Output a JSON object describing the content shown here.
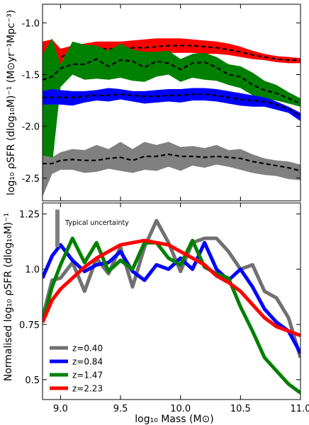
{
  "chart_data": [
    {
      "type": "area",
      "ylabel": "log₁₀ ρSFR (dlog₁₀M)⁻¹ (M⊙yr⁻¹Mpc⁻³)",
      "xlim": [
        8.85,
        11.0
      ],
      "ylim": [
        -2.72,
        -0.82
      ],
      "y_ticks": [
        "-1.0",
        "-1.5",
        "-2.0",
        "-2.5"
      ],
      "x_ticks": [],
      "x": [
        8.85,
        8.93,
        9.0,
        9.1,
        9.2,
        9.3,
        9.4,
        9.5,
        9.6,
        9.7,
        9.8,
        9.9,
        10.0,
        10.1,
        10.2,
        10.3,
        10.4,
        10.5,
        10.6,
        10.7,
        10.8,
        10.9,
        11.0
      ],
      "series": [
        {
          "color": "#ff0000",
          "median": [
            -1.53,
            -1.39,
            -1.33,
            -1.28,
            -1.27,
            -1.25,
            -1.25,
            -1.25,
            -1.24,
            -1.24,
            -1.23,
            -1.22,
            -1.22,
            -1.22,
            -1.23,
            -1.24,
            -1.26,
            -1.28,
            -1.31,
            -1.33,
            -1.35,
            -1.36,
            -1.36
          ],
          "upper": [
            -1.18,
            -1.16,
            -1.25,
            -1.22,
            -1.2,
            -1.18,
            -1.18,
            -1.18,
            -1.17,
            -1.16,
            -1.15,
            -1.15,
            -1.15,
            -1.16,
            -1.17,
            -1.18,
            -1.2,
            -1.23,
            -1.27,
            -1.3,
            -1.32,
            -1.33,
            -1.34
          ],
          "lower": [
            -1.45,
            -1.5,
            -1.4,
            -1.34,
            -1.33,
            -1.32,
            -1.31,
            -1.31,
            -1.3,
            -1.3,
            -1.29,
            -1.29,
            -1.29,
            -1.29,
            -1.3,
            -1.3,
            -1.31,
            -1.33,
            -1.35,
            -1.36,
            -1.38,
            -1.39,
            -1.39
          ]
        },
        {
          "color": "#008000",
          "median": [
            -1.55,
            -1.52,
            -1.44,
            -1.4,
            -1.4,
            -1.35,
            -1.42,
            -1.36,
            -1.37,
            -1.43,
            -1.37,
            -1.39,
            -1.45,
            -1.39,
            -1.38,
            -1.43,
            -1.5,
            -1.52,
            -1.6,
            -1.65,
            -1.68,
            -1.73,
            -1.78
          ],
          "upper": [
            -1.31,
            -1.15,
            -1.4,
            -1.18,
            -1.21,
            -1.22,
            -1.27,
            -1.2,
            -1.26,
            -1.28,
            -1.28,
            -1.27,
            -1.35,
            -1.3,
            -1.29,
            -1.33,
            -1.4,
            -1.42,
            -1.48,
            -1.56,
            -1.6,
            -1.67,
            -1.73
          ],
          "lower": [
            -2.42,
            -2.38,
            -1.62,
            -1.5,
            -1.55,
            -1.54,
            -1.55,
            -1.53,
            -1.56,
            -1.57,
            -1.52,
            -1.5,
            -1.57,
            -1.53,
            -1.55,
            -1.56,
            -1.6,
            -1.63,
            -1.7,
            -1.74,
            -1.75,
            -1.78,
            -1.81
          ]
        },
        {
          "color": "#0000ff",
          "median": [
            -1.72,
            -1.72,
            -1.72,
            -1.72,
            -1.71,
            -1.7,
            -1.7,
            -1.69,
            -1.7,
            -1.71,
            -1.71,
            -1.7,
            -1.7,
            -1.69,
            -1.69,
            -1.7,
            -1.72,
            -1.74,
            -1.75,
            -1.76,
            -1.79,
            -1.83,
            -1.9
          ],
          "upper": [
            -1.66,
            -1.64,
            -1.65,
            -1.66,
            -1.66,
            -1.65,
            -1.63,
            -1.64,
            -1.66,
            -1.66,
            -1.65,
            -1.64,
            -1.64,
            -1.63,
            -1.63,
            -1.64,
            -1.66,
            -1.68,
            -1.7,
            -1.72,
            -1.76,
            -1.81,
            -1.87
          ],
          "lower": [
            -1.79,
            -1.79,
            -1.79,
            -1.8,
            -1.77,
            -1.75,
            -1.76,
            -1.74,
            -1.76,
            -1.78,
            -1.77,
            -1.76,
            -1.77,
            -1.75,
            -1.75,
            -1.76,
            -1.78,
            -1.8,
            -1.81,
            -1.81,
            -1.84,
            -1.87,
            -1.95
          ]
        },
        {
          "color": "#808080",
          "median": [
            -2.36,
            -2.36,
            -2.33,
            -2.32,
            -2.33,
            -2.33,
            -2.31,
            -2.3,
            -2.33,
            -2.29,
            -2.29,
            -2.27,
            -2.29,
            -2.29,
            -2.3,
            -2.29,
            -2.3,
            -2.31,
            -2.34,
            -2.36,
            -2.38,
            -2.4,
            -2.43
          ],
          "upper": [
            -2.28,
            -2.3,
            -2.25,
            -2.22,
            -2.23,
            -2.18,
            -2.22,
            -2.15,
            -2.22,
            -2.15,
            -2.18,
            -2.15,
            -2.2,
            -2.19,
            -2.21,
            -2.18,
            -2.23,
            -2.22,
            -2.27,
            -2.31,
            -2.33,
            -2.34,
            -2.37
          ],
          "lower": [
            -2.68,
            -2.46,
            -2.42,
            -2.42,
            -2.45,
            -2.44,
            -2.41,
            -2.43,
            -2.45,
            -2.42,
            -2.43,
            -2.39,
            -2.43,
            -2.38,
            -2.4,
            -2.37,
            -2.39,
            -2.42,
            -2.45,
            -2.47,
            -2.48,
            -2.51,
            -2.52
          ]
        }
      ]
    },
    {
      "type": "line",
      "ylabel": "Normalised log₁₀ ρSFR (dlog₁₀M)⁻¹",
      "xlabel": "log₁₀ Mass (M⊙)",
      "xlim": [
        8.85,
        11.0
      ],
      "ylim": [
        0.41,
        1.3
      ],
      "y_ticks": [
        "0.5",
        "0.75",
        "1.0",
        "1.25"
      ],
      "x_ticks": [
        "9.0",
        "9.5",
        "10.0",
        "10.5",
        "11.0"
      ],
      "annotation": "Typical uncertainty",
      "uncertainty_bar": [
        1.1,
        1.27
      ],
      "x": [
        8.85,
        8.93,
        9.0,
        9.1,
        9.2,
        9.3,
        9.4,
        9.5,
        9.6,
        9.7,
        9.8,
        9.9,
        10.0,
        10.1,
        10.2,
        10.3,
        10.4,
        10.5,
        10.6,
        10.7,
        10.8,
        10.9,
        11.0
      ],
      "series": [
        {
          "name": "z=0.40",
          "color": "#707070",
          "values": [
            0.78,
            0.95,
            0.96,
            1.03,
            0.9,
            1.05,
            0.98,
            1.1,
            0.92,
            1.1,
            1.22,
            1.12,
            0.99,
            1.12,
            1.14,
            1.14,
            1.08,
            1.0,
            1.02,
            0.9,
            0.87,
            0.78,
            0.6
          ]
        },
        {
          "name": "z=0.84",
          "color": "#0000ff",
          "values": [
            0.96,
            1.06,
            1.11,
            1.04,
            0.99,
            1.02,
            1.03,
            1.08,
            0.99,
            0.95,
            1.02,
            1.0,
            1.05,
            1.0,
            1.12,
            1.0,
            0.95,
            1.0,
            0.92,
            0.82,
            0.76,
            0.72,
            0.62
          ]
        },
        {
          "name": "z=1.47",
          "color": "#008000",
          "values": [
            0.76,
            0.92,
            1.02,
            1.14,
            1.03,
            1.12,
            0.99,
            1.04,
            1.0,
            1.12,
            1.12,
            1.05,
            1.02,
            1.13,
            1.01,
            0.98,
            0.96,
            0.83,
            0.72,
            0.6,
            0.54,
            0.48,
            0.44
          ]
        },
        {
          "name": "z=2.23",
          "color": "#ff0000",
          "values": [
            0.76,
            0.86,
            0.91,
            0.96,
            1.01,
            1.05,
            1.08,
            1.11,
            1.12,
            1.13,
            1.12,
            1.11,
            1.08,
            1.05,
            1.02,
            0.97,
            0.94,
            0.9,
            0.84,
            0.78,
            0.74,
            0.72,
            0.7
          ]
        }
      ]
    }
  ]
}
